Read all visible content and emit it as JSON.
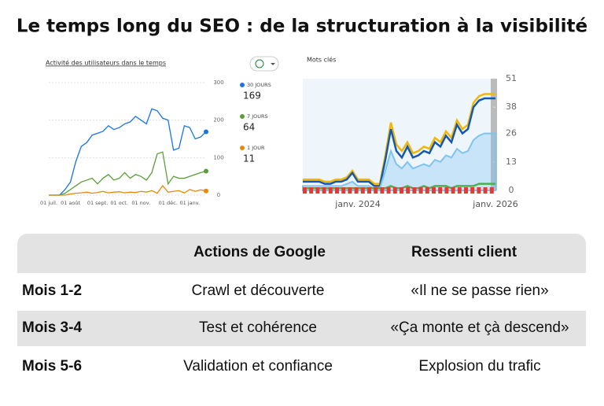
{
  "title": "Le temps long du SEO : de la structuration à la visibilité",
  "chart_data": [
    {
      "type": "line",
      "title": "Activité des utilisateurs dans le temps",
      "categories": [
        "01 juil.",
        null,
        null,
        null,
        "01 août",
        null,
        null,
        null,
        null,
        "01 sept.",
        null,
        null,
        null,
        "01 oct.",
        null,
        null,
        null,
        "01 nov.",
        null,
        null,
        null,
        null,
        "01 déc.",
        null,
        null,
        null,
        "01 janv.",
        null,
        null,
        null
      ],
      "series": [
        {
          "name": "30 JOURS",
          "color": "#1a73e8",
          "value_labels": [
            "169"
          ],
          "values": [
            0,
            0,
            0,
            15,
            35,
            90,
            130,
            140,
            160,
            165,
            170,
            185,
            175,
            180,
            190,
            195,
            210,
            200,
            190,
            230,
            225,
            205,
            200,
            120,
            125,
            185,
            180,
            150,
            155,
            169
          ]
        },
        {
          "name": "7 JOURS",
          "color": "#5a9e3a",
          "value_labels": [
            "64"
          ],
          "values": [
            0,
            0,
            0,
            5,
            15,
            25,
            35,
            40,
            45,
            30,
            45,
            55,
            40,
            45,
            60,
            45,
            55,
            50,
            40,
            60,
            110,
            115,
            30,
            50,
            45,
            45,
            50,
            55,
            60,
            64
          ]
        },
        {
          "name": "1 JOUR",
          "color": "#e8890c",
          "value_labels": [
            "11"
          ],
          "values": [
            0,
            0,
            0,
            0,
            3,
            5,
            6,
            8,
            5,
            7,
            10,
            6,
            8,
            9,
            6,
            8,
            7,
            10,
            8,
            12,
            5,
            25,
            8,
            10,
            12,
            6,
            15,
            10,
            14,
            11
          ]
        }
      ],
      "ylim": [
        0,
        300
      ],
      "yticks": [
        0,
        100,
        200,
        300
      ],
      "grid": true
    },
    {
      "type": "area",
      "title": "Mots clés",
      "categories": [
        null,
        null,
        null,
        null,
        null,
        null,
        null,
        null,
        null,
        null,
        "janv. 2024",
        null,
        null,
        null,
        null,
        null,
        null,
        null,
        null,
        null,
        null,
        null,
        null,
        null,
        null,
        null,
        null,
        null,
        null,
        null,
        null,
        null,
        null,
        null,
        null,
        "janv. 2026"
      ],
      "series": [
        {
          "color": "#f2b705",
          "values": [
            5,
            5,
            5,
            5,
            4,
            4,
            5,
            5,
            6,
            9,
            5,
            5,
            5,
            3,
            3,
            16,
            31,
            21,
            18,
            22,
            17,
            18,
            20,
            19,
            24,
            22,
            27,
            24,
            32,
            28,
            30,
            40,
            43,
            44,
            44,
            44
          ]
        },
        {
          "color": "#1558b0",
          "values": [
            4,
            4,
            4,
            4,
            3,
            3,
            4,
            4,
            5,
            8,
            4,
            4,
            4,
            2,
            2,
            14,
            28,
            18,
            15,
            20,
            15,
            16,
            18,
            17,
            22,
            20,
            25,
            22,
            30,
            26,
            28,
            38,
            41,
            42,
            42,
            42
          ]
        },
        {
          "color": "#7fc3f0",
          "values": [
            2,
            2,
            2,
            2,
            2,
            2,
            2,
            2,
            3,
            4,
            2,
            2,
            2,
            1,
            1,
            9,
            18,
            12,
            10,
            13,
            10,
            11,
            12,
            11,
            14,
            13,
            16,
            15,
            19,
            17,
            18,
            23,
            25,
            26,
            26,
            26
          ]
        },
        {
          "color": "#4caf50",
          "values": [
            1,
            1,
            1,
            1,
            1,
            1,
            1,
            1,
            1,
            1,
            1,
            1,
            1,
            1,
            1,
            1,
            2,
            1,
            1,
            2,
            1,
            1,
            2,
            1,
            2,
            2,
            2,
            1,
            2,
            2,
            2,
            2,
            3,
            3,
            3,
            3
          ]
        }
      ],
      "ylim": [
        0,
        51
      ],
      "yticks": [
        0,
        13,
        26,
        38,
        51
      ],
      "grid": false
    }
  ],
  "table": {
    "header": [
      "Actions de Google",
      "Ressenti client"
    ],
    "rows": [
      [
        "Mois 1-2",
        "Crawl et découverte",
        "«Il ne se passe rien»"
      ],
      [
        "Mois 3-4",
        "Test et cohérence",
        "«Ça monte et çà descend»"
      ],
      [
        "Mois 5-6",
        "Validation et confiance",
        "Explosion du trafic"
      ]
    ]
  }
}
